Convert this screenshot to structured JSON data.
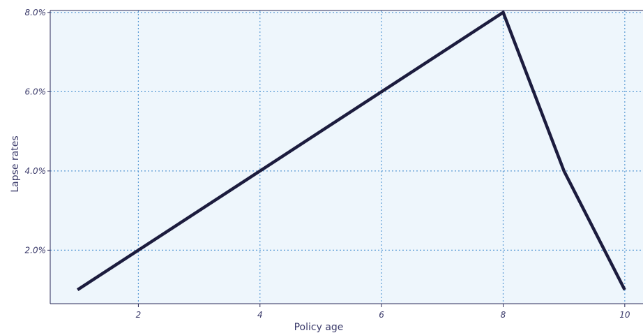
{
  "chart_data": {
    "type": "line",
    "xlabel": "Policy age",
    "ylabel": "Lapse rates",
    "x_ticks": [
      2,
      4,
      6,
      8,
      10
    ],
    "y_ticks": [
      0.02,
      0.04,
      0.06,
      0.08
    ],
    "y_tick_labels": [
      "2.0%",
      "4.0%",
      "6.0%",
      "8.0%"
    ],
    "xlim": [
      0.55,
      10.3
    ],
    "ylim": [
      0.0065,
      0.0805
    ],
    "grid": true,
    "series": [
      {
        "x": [
          1,
          2,
          3,
          4,
          5,
          6,
          7,
          8,
          9,
          10
        ],
        "y": [
          0.01,
          0.02,
          0.03,
          0.04,
          0.05,
          0.06,
          0.07,
          0.08,
          0.04,
          0.01
        ]
      }
    ],
    "colors": {
      "line": "#1c1c3e",
      "plot_background": "#eef6fc",
      "grid": "#5b9bd5",
      "axis": "#2b2b5a",
      "text": "#3a3a6a"
    }
  }
}
